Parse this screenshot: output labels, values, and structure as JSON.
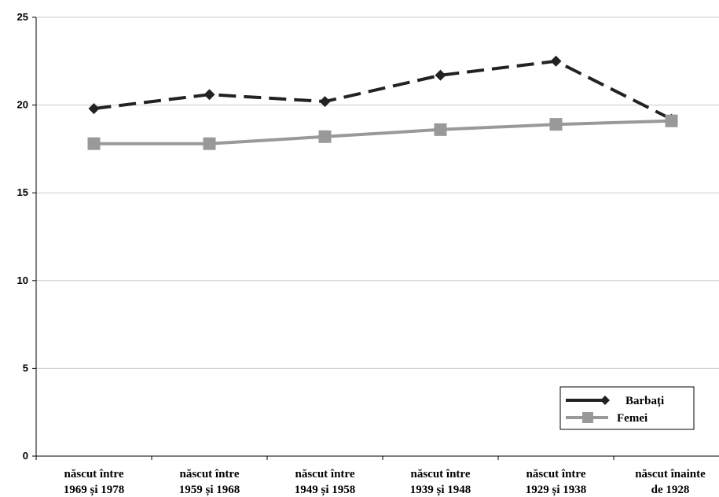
{
  "chart_data": {
    "type": "line",
    "categories": [
      [
        "născut între",
        "1969 și 1978"
      ],
      [
        "născut între",
        "1959 și 1968"
      ],
      [
        "născut între",
        "1949 și 1958"
      ],
      [
        "născut între",
        "1939 și 1948"
      ],
      [
        "născut între",
        "1929 și 1938"
      ],
      [
        "născut înainte",
        "de 1928"
      ]
    ],
    "series": [
      {
        "name": "Barbați",
        "values": [
          19.8,
          20.6,
          20.2,
          21.7,
          22.5,
          19.2
        ],
        "color": "#222222",
        "style": "dashed",
        "marker": "diamond"
      },
      {
        "name": "Femei",
        "values": [
          17.8,
          17.8,
          18.2,
          18.6,
          18.9,
          19.1
        ],
        "color": "#999999",
        "style": "solid",
        "marker": "square"
      }
    ],
    "ylim": [
      0,
      25
    ],
    "yticks": [
      "0",
      "5",
      "10",
      "15",
      "20",
      "25"
    ],
    "grid": true,
    "legend_position": "bottom-right"
  }
}
